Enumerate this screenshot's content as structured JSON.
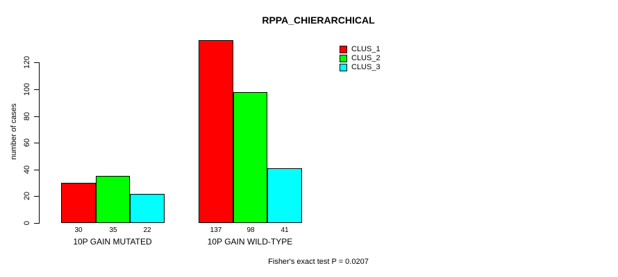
{
  "chart_data": {
    "type": "bar",
    "title": "RPPA_CHIERARCHICAL",
    "xlabel": "",
    "ylabel": "number of cases",
    "ylim": [
      0,
      137
    ],
    "yticks": [
      0,
      20,
      40,
      60,
      80,
      100,
      120
    ],
    "grid": false,
    "legend_position": "top-right-inside",
    "categories": [
      "10P GAIN MUTATED",
      "10P GAIN WILD-TYPE"
    ],
    "series": [
      {
        "name": "CLUS_1",
        "color": "#ff0000",
        "values": [
          30,
          137
        ]
      },
      {
        "name": "CLUS_2",
        "color": "#00ff00",
        "values": [
          35,
          98
        ]
      },
      {
        "name": "CLUS_3",
        "color": "#00ffff",
        "values": [
          22,
          41
        ]
      }
    ],
    "bar_value_labels": [
      [
        30,
        35,
        22
      ],
      [
        137,
        98,
        41
      ]
    ],
    "annotation": "Fisher's exact test P = 0.0207",
    "colors": {
      "background": "#ffffff",
      "axis": "#000000",
      "text": "#000000"
    }
  }
}
